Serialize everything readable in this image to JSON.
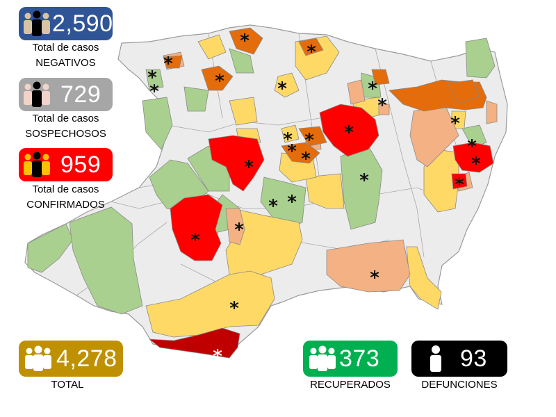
{
  "colors": {
    "no_cases": "#ececec",
    "recovered_green": "#a9d08e",
    "yellow": "#ffd966",
    "orange": "#f4b183",
    "dark_orange": "#e46c0a",
    "red": "#ff0000",
    "dark_red": "#c00000",
    "badge_negativos": "#2f5597",
    "badge_sospechosos": "#a6a6a6",
    "badge_confirmados": "#ff0000",
    "badge_total": "#bf9000",
    "badge_recuperados": "#00b050",
    "badge_defunciones": "#000000"
  },
  "stats": {
    "negativos": {
      "value": "2,590",
      "caption_line1": "Total de casos",
      "caption_line2": "NEGATIVOS",
      "icon": "people-icon"
    },
    "sospechosos": {
      "value": "729",
      "caption_line1": "Total de casos",
      "caption_line2": "SOSPECHOSOS",
      "icon": "people-icon"
    },
    "confirmados": {
      "value": "959",
      "caption_line1": "Total de casos",
      "caption_line2": "CONFIRMADOS",
      "icon": "people-icon"
    },
    "total": {
      "value": "4,278",
      "caption": "TOTAL",
      "icon": "people-icon"
    },
    "recuperados": {
      "value": "373",
      "caption": "RECUPERADOS",
      "icon": "people-icon"
    },
    "defunciones": {
      "value": "93",
      "caption": "DEFUNCIONES",
      "icon": "person-icon"
    }
  },
  "map": {
    "marker_symbol": "*",
    "death_marker_note": "asterisk marks municipalities with deaths"
  }
}
